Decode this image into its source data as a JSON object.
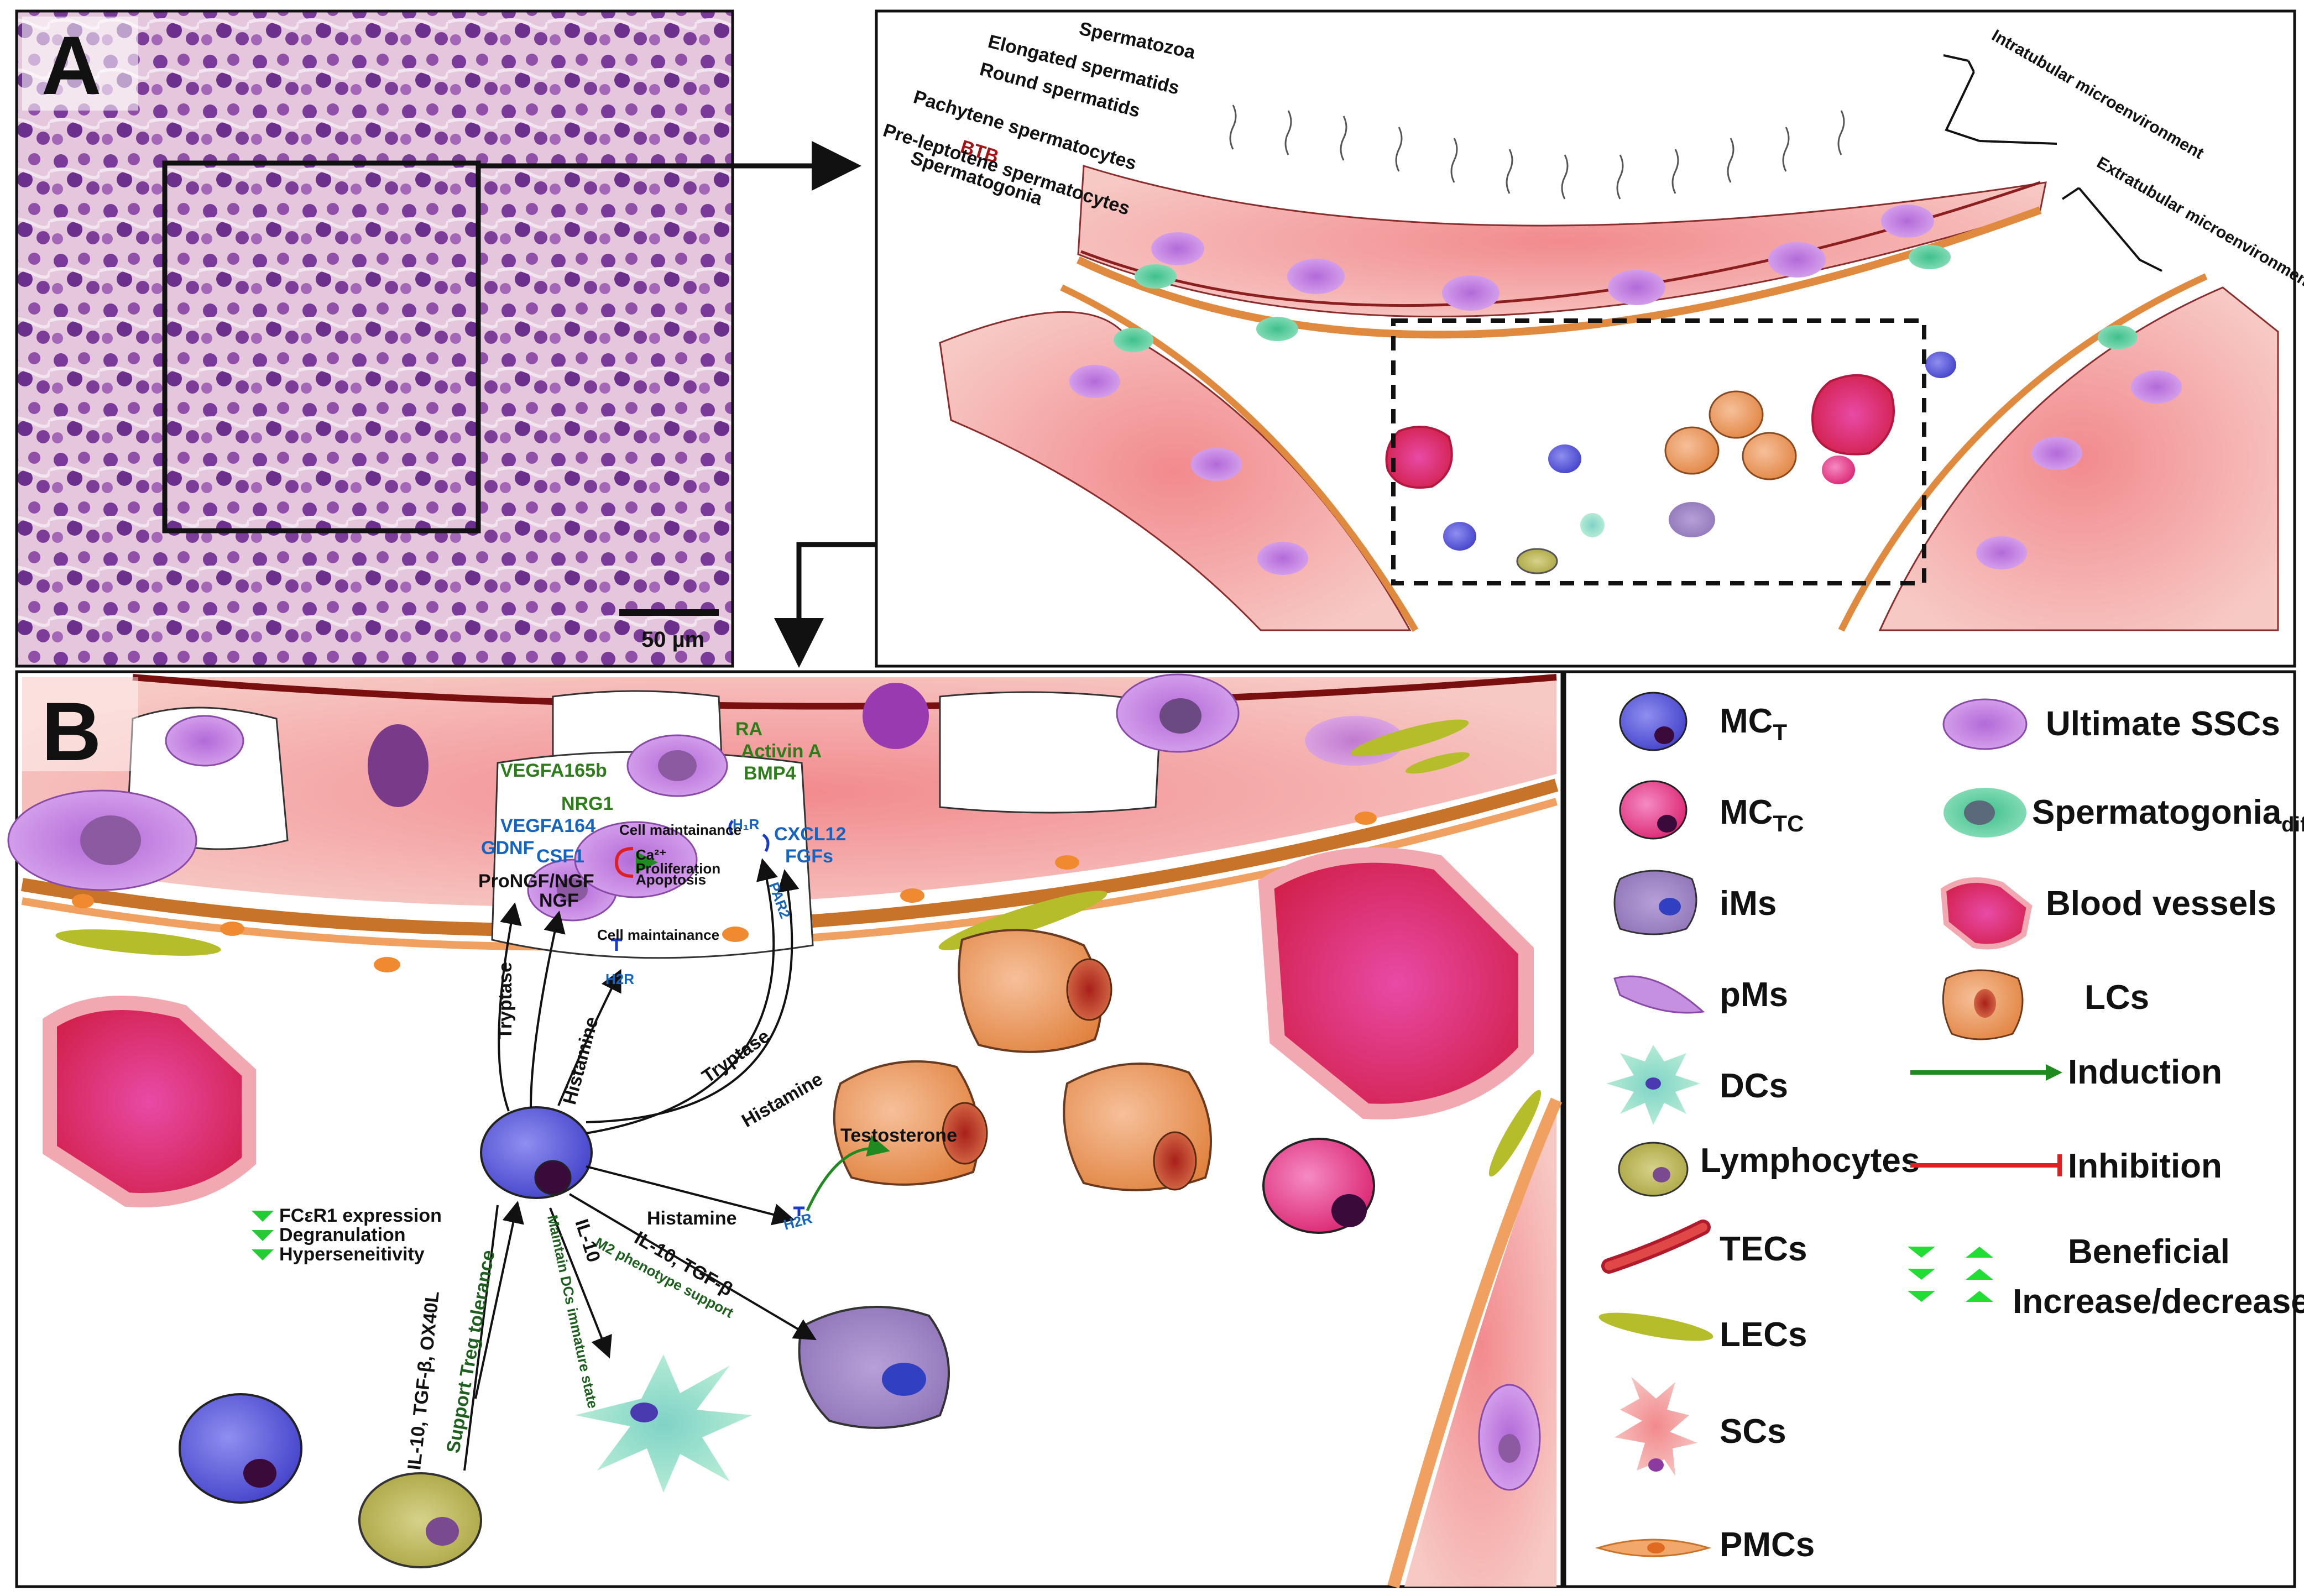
{
  "panel_a": {
    "letter": "A",
    "scale_bar": "50 µm",
    "layer_labels": [
      "Spermatozoa",
      "Elongated spermatids",
      "Round spermatids",
      "Pachytene spermatocytes",
      "BTB",
      "Pre-leptotene spermatocytes",
      "Spermatogonia"
    ],
    "intratubular": "Intratubular microenvironment",
    "extratubular": "Extratubular microenvironment"
  },
  "panel_b": {
    "letter": "B",
    "niche_factors": {
      "ra": "RA",
      "activin": "Activin A",
      "bmp4": "BMP4",
      "vegfa165b": "VEGFA165b",
      "nrg1": "NRG1",
      "vegfa164": "VEGFA164",
      "gdnf": "GDNF",
      "csf1": "CSF1",
      "cxcl12": "CXCL12",
      "fgfs": "FGFs",
      "prongf": "ProNGF/NGF",
      "ngf": "NGF"
    },
    "cell_labels": {
      "cell_maintainance_top": "Cell maintainance",
      "ca": "Ca²⁺",
      "prolif": "Proliferation",
      "apoptosis": "Apoptosis",
      "h1r": "H₁R",
      "par2": "PAR2",
      "cell_maintainance_mid": "Cell maintainance",
      "h2r": "H2R",
      "h2r_lc": "H2R",
      "testosterone": "Testosterone"
    },
    "arrow_labels": {
      "tryptase1": "Tryptase",
      "histamine1": "Histamine",
      "tryptase2": "Tryptase",
      "histamine2": "Histamine",
      "histamine3": "Histamine",
      "il10_tgfb": "IL-10, TGF-β",
      "m2": "M2 phenotype support",
      "il10": "IL-10",
      "dcs": "Maintain DCs immature state",
      "treg": "Support Treg tolerance",
      "lymph": "IL-10, TGF-β, OX40L"
    },
    "effects": [
      "FCεR1 expression",
      "Degranulation",
      "Hyperseneitivity"
    ]
  },
  "legend": {
    "left": [
      {
        "icon": "mct-icon",
        "label": "MC",
        "sub": "T"
      },
      {
        "icon": "mctc-icon",
        "label": "MC",
        "sub": "TC"
      },
      {
        "icon": "ims-icon",
        "label": "iMs",
        "sub": ""
      },
      {
        "icon": "pms-icon",
        "label": "pMs",
        "sub": ""
      },
      {
        "icon": "dcs-icon",
        "label": "DCs",
        "sub": ""
      },
      {
        "icon": "lymphocytes-icon",
        "label": "Lymphocytes",
        "sub": ""
      },
      {
        "icon": "tecs-icon",
        "label": "TECs",
        "sub": ""
      },
      {
        "icon": "lecs-icon",
        "label": "LECs",
        "sub": ""
      },
      {
        "icon": "scs-icon",
        "label": "SCs",
        "sub": ""
      },
      {
        "icon": "pmcs-icon",
        "label": "PMCs",
        "sub": ""
      }
    ],
    "right": [
      {
        "icon": "ssc-icon",
        "label": "Ultimate SSCs",
        "sub": ""
      },
      {
        "icon": "spg-diff-icon",
        "label": "Spermatogonia",
        "sub": "diff"
      },
      {
        "icon": "blood-vessel-icon",
        "label": "Blood vessels",
        "sub": ""
      },
      {
        "icon": "lcs-icon",
        "label": "LCs",
        "sub": ""
      },
      {
        "icon": "induction-arrow-icon",
        "label": "Induction",
        "sub": ""
      },
      {
        "icon": "inhibition-icon",
        "label": "Inhibition",
        "sub": ""
      }
    ],
    "beneficial": "Beneficial",
    "increase_decrease": "Increase/decrease"
  },
  "colors": {
    "mct": "#5a58d8",
    "mctc": "#e23c8c",
    "sertoli": "#f5b9b5",
    "pmc": "#e9a06a",
    "lc": "#e8a062",
    "blood": "#e0336e",
    "ssc": "#c98ce6",
    "induction": "#1f8a1f",
    "inhibition": "#e02020"
  }
}
